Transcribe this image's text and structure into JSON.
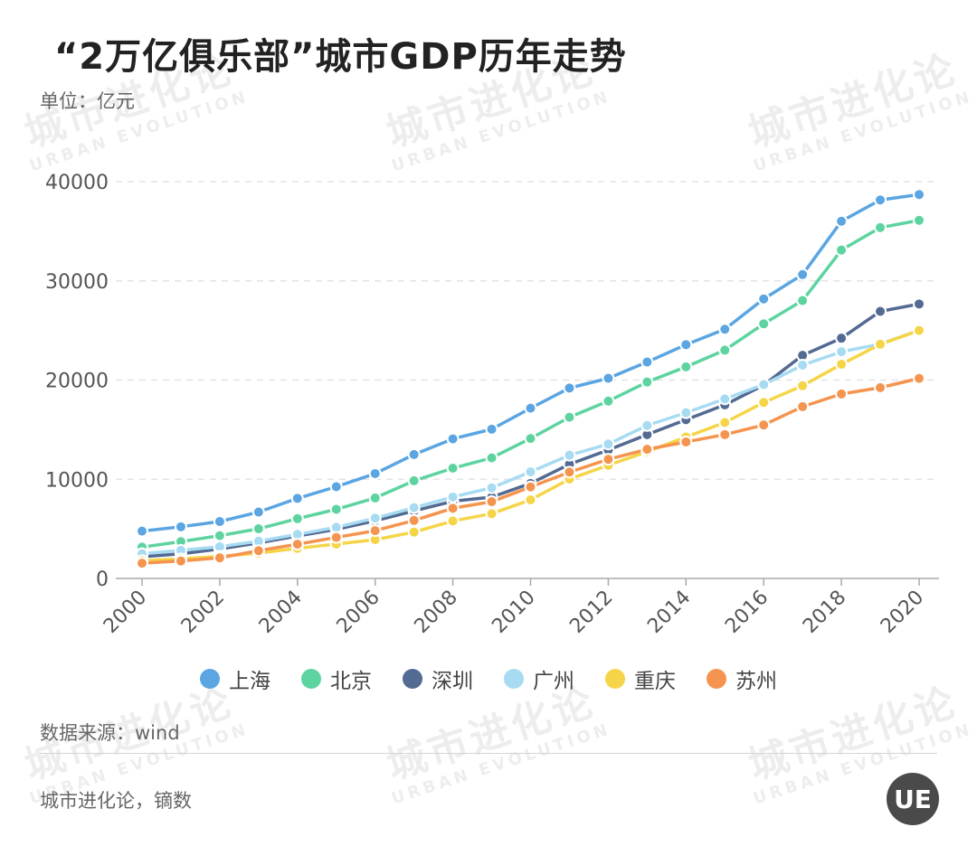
{
  "header": {
    "title": "“2万亿俱乐部”城市GDP历年走势",
    "unit": "单位：亿元"
  },
  "watermark": {
    "cn": "城市进化论",
    "en": "URBAN EVOLUTION"
  },
  "chart_data": {
    "type": "line",
    "title": "“2万亿俱乐部”城市GDP历年走势",
    "ylabel": "单位：亿元",
    "xlabel": "",
    "ylim": [
      0,
      40000
    ],
    "yticks": [
      0,
      10000,
      20000,
      30000,
      40000
    ],
    "ytick_labels": [
      "0",
      "10000",
      "20000",
      "30000",
      "40000"
    ],
    "x": [
      2000,
      2001,
      2002,
      2003,
      2004,
      2005,
      2006,
      2007,
      2008,
      2009,
      2010,
      2011,
      2012,
      2013,
      2014,
      2015,
      2016,
      2017,
      2018,
      2019,
      2020
    ],
    "xtick_labels": [
      "2000",
      "2002",
      "2004",
      "2006",
      "2008",
      "2010",
      "2012",
      "2014",
      "2016",
      "2018",
      "2020"
    ],
    "grid": true,
    "legend_position": "bottom",
    "series": [
      {
        "name": "上海",
        "color": "#5aa5e2",
        "values": [
          4771,
          5210,
          5741,
          6694,
          8073,
          9248,
          10572,
          12494,
          14070,
          15046,
          17166,
          19196,
          20182,
          21818,
          23568,
          25123,
          28179,
          30633,
          36012,
          38155,
          38701
        ]
      },
      {
        "name": "北京",
        "color": "#5dd4a0",
        "values": [
          3162,
          3710,
          4315,
          5007,
          6033,
          6970,
          8118,
          9847,
          11115,
          12153,
          14114,
          16252,
          17879,
          19801,
          21331,
          23015,
          25669,
          28015,
          33106,
          35371,
          36103
        ]
      },
      {
        "name": "深圳",
        "color": "#536a93",
        "values": [
          2187,
          2482,
          2970,
          3586,
          4282,
          4951,
          5814,
          6802,
          7787,
          8201,
          9582,
          11506,
          12950,
          14500,
          16002,
          17503,
          19493,
          22490,
          24222,
          26927,
          27670
        ]
      },
      {
        "name": "广州",
        "color": "#a7dbf2",
        "values": [
          2492,
          2841,
          3203,
          3759,
          4450,
          5154,
          6081,
          7141,
          8216,
          9138,
          10748,
          12423,
          13551,
          15420,
          16707,
          18100,
          19547,
          21503,
          22859,
          23629,
          25019
        ]
      },
      {
        "name": "重庆",
        "color": "#f5d547",
        "values": [
          1791,
          1976,
          2233,
          2555,
          3035,
          3468,
          3907,
          4676,
          5794,
          6530,
          7926,
          10011,
          11410,
          12783,
          14263,
          15717,
          17740,
          19425,
          21589,
          23606,
          25003
        ]
      },
      {
        "name": "苏州",
        "color": "#f5944f",
        "values": [
          1541,
          1760,
          2080,
          2801,
          3450,
          4138,
          4820,
          5850,
          7078,
          7740,
          9229,
          10717,
          12012,
          13016,
          13761,
          14504,
          15475,
          17320,
          18597,
          19236,
          20171
        ]
      }
    ]
  },
  "source": "数据来源：wind",
  "footer": "城市进化论，镝数",
  "logo": {
    "text": "UE"
  }
}
